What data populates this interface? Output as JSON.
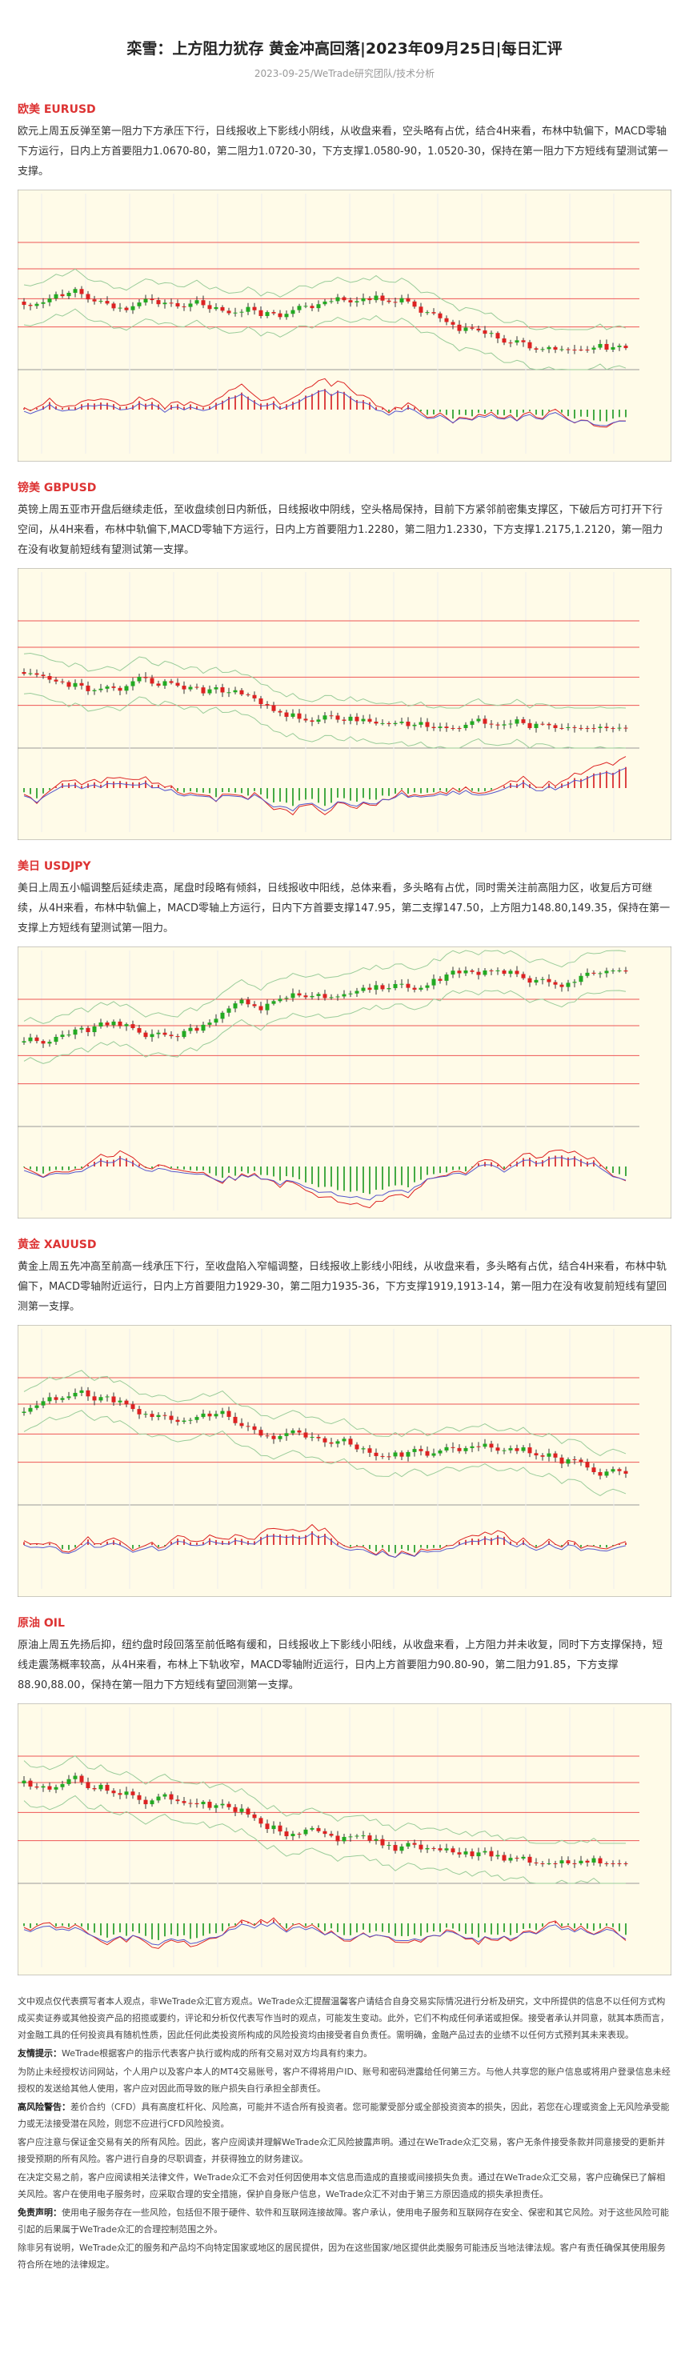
{
  "header": {
    "title": "栾雪：上方阻力犹存 黄金冲高回落|2023年09月25日|每日汇评",
    "subtitle": "2023-09-25/WeTrade研究团队/技术分析"
  },
  "sections": [
    {
      "heading": "欧美 EURUSD",
      "body": "欧元上周五反弹至第一阻力下方承压下行，日线报收上下影线小阴线，从收盘来看，空头略有占优，结合4H来看，布林中轨偏下，MACD零轴下方运行，日内上方首要阻力1.0670-80，第二阻力1.0720-30，下方支撑1.0580-90，1.0520-30，保持在第一阻力下方短线有望测试第一支撑。"
    },
    {
      "heading": "镑美 GBPUSD",
      "body": "英镑上周五亚市开盘后继续走低，至收盘续创日内新低，日线报收中阴线，空头格局保持，目前下方紧邻前密集支撑区，下破后方可打开下行空间，从4H来看，布林中轨偏下,MACD零轴下方运行，日内上方首要阻力1.2280，第二阻力1.2330，下方支撑1.2175,1.2120，第一阻力在没有收复前短线有望测试第一支撑。"
    },
    {
      "heading": "美日 USDJPY",
      "body": "美日上周五小幅调整后延续走高，尾盘时段略有倾斜，日线报收中阳线，总体来看，多头略有占优，同时需关注前高阻力区，收复后方可继续，从4H来看，布林中轨偏上，MACD零轴上方运行，日内下方首要支撑147.95，第二支撑147.50，上方阻力148.80,149.35，保持在第一支撑上方短线有望测试第一阻力。"
    },
    {
      "heading": "黄金 XAUUSD",
      "body": "黄金上周五先冲高至前高一线承压下行，至收盘陷入窄幅调整，日线报收上影线小阳线，从收盘来看，多头略有占优，结合4H来看，布林中轨偏下，MACD零轴附近运行，日内上方首要阻力1929-30，第二阻力1935-36，下方支撑1919,1913-14，第一阻力在没有收复前短线有望回测第一支撑。"
    },
    {
      "heading": "原油 OIL",
      "body": "原油上周五先扬后抑，纽约盘时段回落至前低略有缓和，日线报收上下影线小阳线，从收盘来看，上方阻力并未收复，同时下方支撑保持，短线走震荡概率较高，从4H来看，布林上下轨收窄，MACD零轴附近运行，日内上方首要阻力90.80-90，第二阻力91.85，下方支撑88.90,88.00，保持在第一阻力下方短线有望回测第一支撑。"
    }
  ],
  "disclaimer": [
    {
      "text": "文中观点仅代表撰写者本人观点，非WeTrade众汇官方观点。WeTrade众汇提醒温馨客户请结合自身交易实际情况进行分析及研究，文中所提供的信息不以任何方式构成买卖证券或其他投资产品的招揽或要约，评论和分析仅代表写作当时的观点，可能发生变动。此外，它们不构成任何承诺或担保。接受者承认并同意，就其本质而言，对金融工具的任何投资具有随机性质，因此任何此类投资所构成的风险投资均由接受者自负责任。需明确，金融产品过去的业绩不以任何方式预判其未来表现。"
    },
    {
      "lead": "友情提示：",
      "text": "WeTrade根据客户的指示代表客户执行或构成的所有交易对双方均具有约束力。"
    },
    {
      "text": "为防止未经授权访问网站，个人用户以及客户本人的MT4交易账号，客户不得将用户ID、账号和密码泄露给任何第三方。与他人共享您的账户信息或将用户登录信息未经授权的发送给其他人使用，客户应对因此而导致的账户损失自行承担全部责任。"
    },
    {
      "lead": "高风险警告：",
      "text": "差价合约（CFD）具有高度杠杆化、风险高，可能并不适合所有投资者。您可能蒙受部分或全部投资资本的损失，因此，若您在心理或资金上无风险承受能力或无法接受潜在风险，则您不应进行CFD风险投资。"
    },
    {
      "text": "客户应注意与保证金交易有关的所有风险。因此，客户应阅读并理解WeTrade众汇风险披露声明。通过在WeTrade众汇交易，客户无条件接受条款并同意接受的更新并接受预期的所有风险。客户进行自身的尽职调查，并获得独立的财务建议。"
    },
    {
      "text": "在决定交易之前，客户应阅读相关法律文件，WeTrade众汇不会对任何因使用本文信息而造成的直接或间接损失负责。通过在WeTrade众汇交易，客户应确保已了解相关风险。客户在使用电子服务时，应采取合理的安全措施，保护自身账户信息，WeTrade众汇不对由于第三方原因造成的损失承担责任。"
    },
    {
      "lead": "免责声明：",
      "text": "使用电子服务存在一些风险，包括但不限于硬件、软件和互联网连接故障。客户承认，使用电子服务和互联网存在安全、保密和其它风险。对于这些风险可能引起的后果属于WeTrade众汇的合理控制范围之外。"
    },
    {
      "text": "除非另有说明，WeTrade众汇的服务和产品均不向特定国家或地区的居民提供，因为在这些国家/地区提供此类服务可能违反当地法律法规。客户有责任确保其使用服务符合所在地的法律规定。"
    }
  ]
}
